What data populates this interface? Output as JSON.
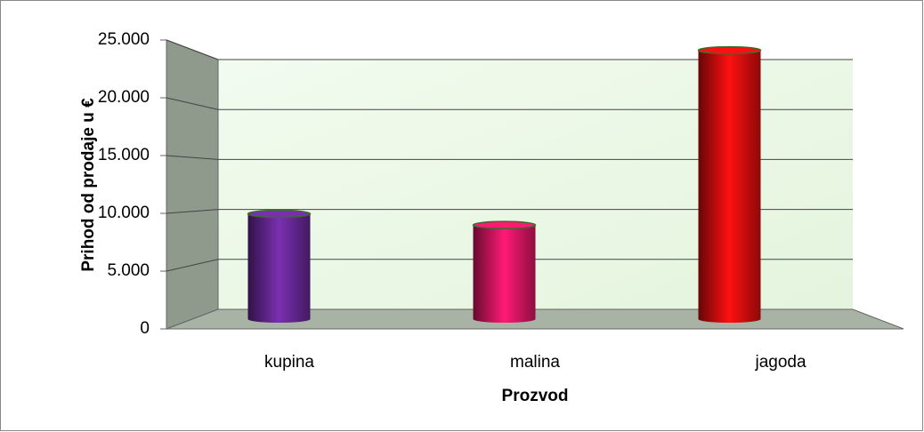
{
  "chart_data": {
    "type": "bar",
    "categories": [
      "kupina",
      "malina",
      "jagoda"
    ],
    "values": [
      9400,
      8400,
      24000
    ],
    "colors": [
      "#7a2fb0",
      "#ff1a75",
      "#ff1010"
    ],
    "ylim": [
      0,
      25000
    ],
    "yticks": [
      0,
      {
        "value": 5000,
        "label": "5.000"
      },
      {
        "value": 10000,
        "label": "10.000"
      },
      {
        "value": 15000,
        "label": "15.000"
      },
      {
        "value": 20000,
        "label": "20.000"
      },
      {
        "value": 25000,
        "label": "25.000"
      }
    ],
    "ylabel": "Prihod od prodaje  u €",
    "xlabel": "Prozvod",
    "grid": true
  }
}
